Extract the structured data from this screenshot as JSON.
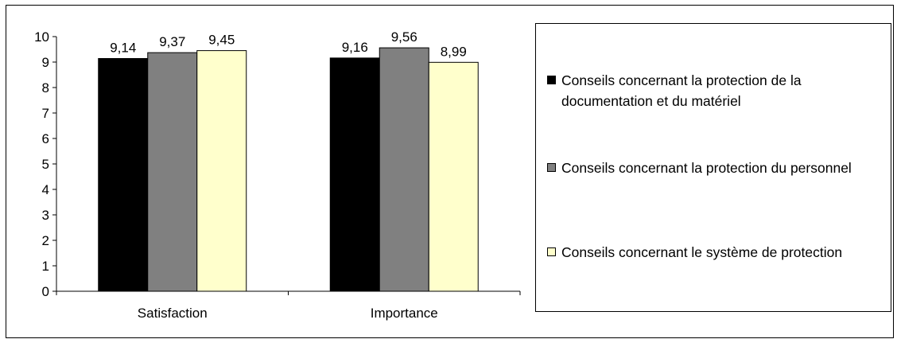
{
  "chart_data": {
    "type": "bar",
    "categories": [
      "Satisfaction",
      "Importance"
    ],
    "series": [
      {
        "name": "Conseils concernant la protection de la documentation et du matériel",
        "values": [
          9.14,
          9.16
        ],
        "labels": [
          "9,14",
          "9,16"
        ],
        "color": "#000000"
      },
      {
        "name": "Conseils concernant la protection du personnel",
        "values": [
          9.37,
          9.56
        ],
        "labels": [
          "9,37",
          "9,56"
        ],
        "color": "#808080"
      },
      {
        "name": "Conseils concernant le système de protection",
        "values": [
          9.45,
          8.99
        ],
        "labels": [
          "9,45",
          "8,99"
        ],
        "color": "#ffffcc"
      }
    ],
    "yticks": [
      "0",
      "1",
      "2",
      "3",
      "4",
      "5",
      "6",
      "7",
      "8",
      "9",
      "10"
    ],
    "ylim": [
      0,
      10
    ],
    "grid": false,
    "legend_position": "right"
  }
}
